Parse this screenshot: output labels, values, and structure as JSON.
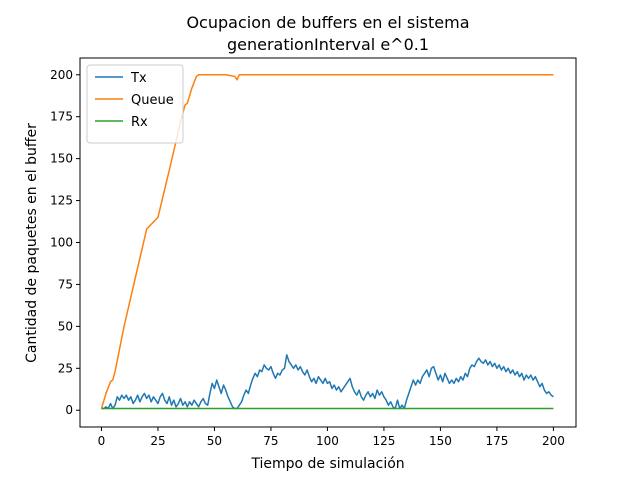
{
  "chart_data": {
    "type": "line",
    "title": "Ocupacion de buffers en el sistema",
    "subtitle": "generationInterval e^0.1",
    "xlabel": "Tiempo de simulación",
    "ylabel": "Cantidad de paquetes en el buffer",
    "xlim": [
      -9.5,
      210
    ],
    "ylim": [
      -10,
      210
    ],
    "x_ticks": [
      0,
      25,
      50,
      75,
      100,
      125,
      150,
      175,
      200
    ],
    "y_ticks": [
      0,
      25,
      50,
      75,
      100,
      125,
      150,
      175,
      200
    ],
    "grid": false,
    "legend_position": "top-left",
    "series": [
      {
        "name": "Tx",
        "color": "#1f77b4",
        "points": [
          [
            0,
            1
          ],
          [
            1,
            1
          ],
          [
            2,
            2
          ],
          [
            3,
            1
          ],
          [
            4,
            4
          ],
          [
            5,
            1
          ],
          [
            6,
            3
          ],
          [
            7,
            8
          ],
          [
            8,
            6
          ],
          [
            9,
            9
          ],
          [
            10,
            7
          ],
          [
            11,
            9
          ],
          [
            12,
            6
          ],
          [
            13,
            8
          ],
          [
            14,
            4
          ],
          [
            15,
            6
          ],
          [
            16,
            9
          ],
          [
            17,
            5
          ],
          [
            18,
            8
          ],
          [
            19,
            10
          ],
          [
            20,
            7
          ],
          [
            21,
            9
          ],
          [
            22,
            5
          ],
          [
            23,
            8
          ],
          [
            24,
            6
          ],
          [
            25,
            4
          ],
          [
            26,
            8
          ],
          [
            27,
            10
          ],
          [
            28,
            6
          ],
          [
            29,
            4
          ],
          [
            30,
            8
          ],
          [
            31,
            3
          ],
          [
            32,
            6
          ],
          [
            33,
            2
          ],
          [
            34,
            4
          ],
          [
            35,
            7
          ],
          [
            36,
            3
          ],
          [
            37,
            5
          ],
          [
            38,
            2
          ],
          [
            39,
            5
          ],
          [
            40,
            3
          ],
          [
            41,
            6
          ],
          [
            42,
            4
          ],
          [
            43,
            2
          ],
          [
            44,
            5
          ],
          [
            45,
            7
          ],
          [
            46,
            4
          ],
          [
            47,
            3
          ],
          [
            48,
            10
          ],
          [
            49,
            16
          ],
          [
            50,
            13
          ],
          [
            51,
            18
          ],
          [
            52,
            14
          ],
          [
            53,
            10
          ],
          [
            54,
            15
          ],
          [
            55,
            12
          ],
          [
            56,
            8
          ],
          [
            57,
            5
          ],
          [
            58,
            2
          ],
          [
            59,
            1
          ],
          [
            60,
            1
          ],
          [
            61,
            3
          ],
          [
            62,
            5
          ],
          [
            63,
            9
          ],
          [
            64,
            12
          ],
          [
            65,
            10
          ],
          [
            66,
            15
          ],
          [
            67,
            19
          ],
          [
            68,
            22
          ],
          [
            69,
            20
          ],
          [
            70,
            24
          ],
          [
            71,
            23
          ],
          [
            72,
            27
          ],
          [
            73,
            25
          ],
          [
            74,
            24
          ],
          [
            75,
            26
          ],
          [
            76,
            22
          ],
          [
            77,
            19
          ],
          [
            78,
            22
          ],
          [
            79,
            21
          ],
          [
            80,
            24
          ],
          [
            81,
            25
          ],
          [
            82,
            33
          ],
          [
            83,
            29
          ],
          [
            84,
            27
          ],
          [
            85,
            25
          ],
          [
            86,
            27
          ],
          [
            87,
            24
          ],
          [
            88,
            26
          ],
          [
            89,
            23
          ],
          [
            90,
            21
          ],
          [
            91,
            24
          ],
          [
            92,
            20
          ],
          [
            93,
            17
          ],
          [
            94,
            19
          ],
          [
            95,
            16
          ],
          [
            96,
            20
          ],
          [
            97,
            18
          ],
          [
            98,
            16
          ],
          [
            99,
            19
          ],
          [
            100,
            16
          ],
          [
            101,
            17
          ],
          [
            102,
            13
          ],
          [
            103,
            15
          ],
          [
            104,
            12
          ],
          [
            105,
            14
          ],
          [
            106,
            11
          ],
          [
            107,
            13
          ],
          [
            108,
            15
          ],
          [
            109,
            17
          ],
          [
            110,
            19
          ],
          [
            111,
            14
          ],
          [
            112,
            11
          ],
          [
            113,
            9
          ],
          [
            114,
            12
          ],
          [
            115,
            8
          ],
          [
            116,
            6
          ],
          [
            117,
            9
          ],
          [
            118,
            11
          ],
          [
            119,
            8
          ],
          [
            120,
            10
          ],
          [
            121,
            7
          ],
          [
            122,
            12
          ],
          [
            123,
            9
          ],
          [
            124,
            11
          ],
          [
            125,
            8
          ],
          [
            126,
            6
          ],
          [
            127,
            3
          ],
          [
            128,
            5
          ],
          [
            129,
            2
          ],
          [
            130,
            1
          ],
          [
            131,
            6
          ],
          [
            132,
            1
          ],
          [
            133,
            3
          ],
          [
            134,
            1
          ],
          [
            135,
            6
          ],
          [
            136,
            10
          ],
          [
            137,
            14
          ],
          [
            138,
            18
          ],
          [
            139,
            15
          ],
          [
            140,
            18
          ],
          [
            141,
            16
          ],
          [
            142,
            20
          ],
          [
            143,
            22
          ],
          [
            144,
            24
          ],
          [
            145,
            20
          ],
          [
            146,
            25
          ],
          [
            147,
            26
          ],
          [
            148,
            22
          ],
          [
            149,
            18
          ],
          [
            150,
            21
          ],
          [
            151,
            17
          ],
          [
            152,
            22
          ],
          [
            153,
            19
          ],
          [
            154,
            16
          ],
          [
            155,
            18
          ],
          [
            156,
            16
          ],
          [
            157,
            19
          ],
          [
            158,
            17
          ],
          [
            159,
            20
          ],
          [
            160,
            18
          ],
          [
            161,
            22
          ],
          [
            162,
            20
          ],
          [
            163,
            25
          ],
          [
            164,
            27
          ],
          [
            165,
            26
          ],
          [
            166,
            29
          ],
          [
            167,
            31
          ],
          [
            168,
            29
          ],
          [
            169,
            28
          ],
          [
            170,
            30
          ],
          [
            171,
            27
          ],
          [
            172,
            29
          ],
          [
            173,
            26
          ],
          [
            174,
            28
          ],
          [
            175,
            25
          ],
          [
            176,
            27
          ],
          [
            177,
            24
          ],
          [
            178,
            26
          ],
          [
            179,
            23
          ],
          [
            180,
            25
          ],
          [
            181,
            22
          ],
          [
            182,
            24
          ],
          [
            183,
            21
          ],
          [
            184,
            23
          ],
          [
            185,
            20
          ],
          [
            186,
            22
          ],
          [
            187,
            18
          ],
          [
            188,
            21
          ],
          [
            189,
            19
          ],
          [
            190,
            21
          ],
          [
            191,
            18
          ],
          [
            192,
            20
          ],
          [
            193,
            17
          ],
          [
            194,
            14
          ],
          [
            195,
            16
          ],
          [
            196,
            12
          ],
          [
            197,
            10
          ],
          [
            198,
            11
          ],
          [
            199,
            9
          ],
          [
            200,
            8
          ]
        ]
      },
      {
        "name": "Queue",
        "color": "#ff7f0e",
        "points": [
          [
            0,
            1
          ],
          [
            2,
            10
          ],
          [
            4,
            17
          ],
          [
            5,
            18
          ],
          [
            6,
            23
          ],
          [
            10,
            50
          ],
          [
            15,
            79
          ],
          [
            20,
            108
          ],
          [
            25,
            115
          ],
          [
            30,
            143
          ],
          [
            35,
            172
          ],
          [
            37,
            182
          ],
          [
            38,
            183
          ],
          [
            40,
            192
          ],
          [
            42,
            199
          ],
          [
            43,
            200
          ],
          [
            45,
            200
          ],
          [
            50,
            200
          ],
          [
            55,
            200
          ],
          [
            59,
            199
          ],
          [
            60,
            197
          ],
          [
            61,
            200
          ],
          [
            65,
            200
          ],
          [
            100,
            200
          ],
          [
            150,
            200
          ],
          [
            200,
            200
          ]
        ]
      },
      {
        "name": "Rx",
        "color": "#2ca02c",
        "points": [
          [
            0,
            1
          ],
          [
            200,
            1
          ]
        ]
      }
    ]
  }
}
